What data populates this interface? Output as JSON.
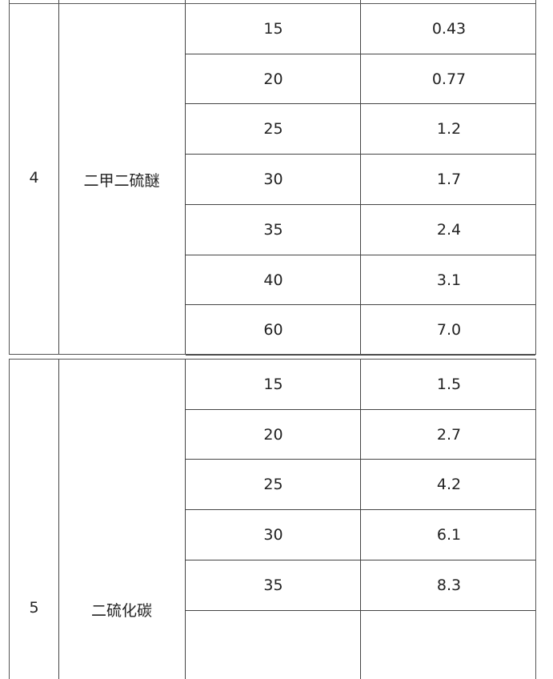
{
  "table1": {
    "index": "4",
    "name": "二甲二硫醚",
    "rows": [
      {
        "col3": "15",
        "col4": "0.43"
      },
      {
        "col3": "20",
        "col4": "0.77"
      },
      {
        "col3": "25",
        "col4": "1.2"
      },
      {
        "col3": "30",
        "col4": "1.7"
      },
      {
        "col3": "35",
        "col4": "2.4"
      },
      {
        "col3": "40",
        "col4": "3.1"
      },
      {
        "col3": "60",
        "col4": "7.0"
      }
    ]
  },
  "table2": {
    "index": "5",
    "name": "二硫化碳",
    "rows": [
      {
        "col3": "15",
        "col4": "1.5"
      },
      {
        "col3": "20",
        "col4": "2.7"
      },
      {
        "col3": "25",
        "col4": "4.2"
      },
      {
        "col3": "30",
        "col4": "6.1"
      },
      {
        "col3": "35",
        "col4": "8.3"
      }
    ]
  }
}
